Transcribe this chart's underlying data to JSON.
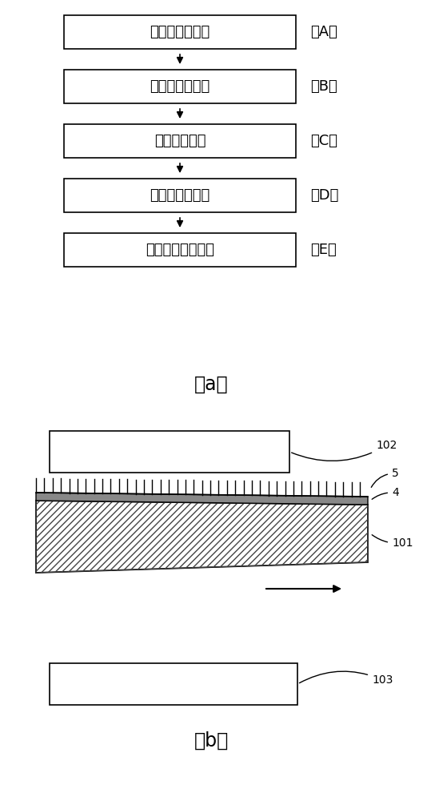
{
  "bg_color": "#ffffff",
  "flow_boxes": [
    {
      "label": "基材片成形工序",
      "tag": "（A）"
    },
    {
      "label": "粘接剂涂覆工序",
      "tag": "（B）"
    },
    {
      "label": "纤维植毛工序",
      "tag": "（C）"
    },
    {
      "label": "粘接剂固化工序",
      "tag": "（D）"
    },
    {
      "label": "剩余纤维去除工序",
      "tag": "（E）"
    }
  ],
  "caption_a": "（a）",
  "caption_b": "（b）",
  "label_102": "102",
  "label_5": "5",
  "label_4": "4",
  "label_101": "101",
  "label_103": "103",
  "n_fibers": 40
}
